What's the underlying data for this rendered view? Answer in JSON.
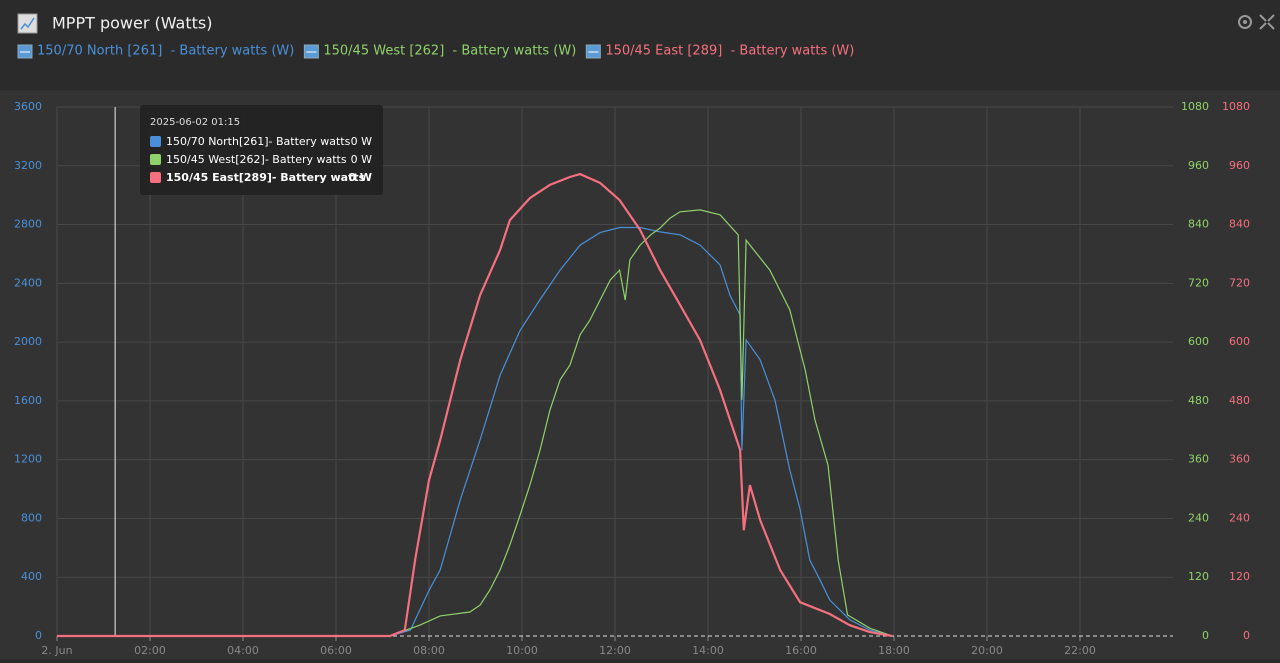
{
  "chart_data": {
    "type": "line",
    "title": "MPPT power (Watts)",
    "xlim": [
      0,
      24
    ],
    "xticks": [
      {
        "value": 0,
        "label": "2. Jun"
      },
      {
        "value": 2,
        "label": "02:00"
      },
      {
        "value": 4,
        "label": "04:00"
      },
      {
        "value": 6,
        "label": "06:00"
      },
      {
        "value": 8,
        "label": "08:00"
      },
      {
        "value": 10,
        "label": "10:00"
      },
      {
        "value": 12,
        "label": "12:00"
      },
      {
        "value": 14,
        "label": "14:00"
      },
      {
        "value": 16,
        "label": "16:00"
      },
      {
        "value": 18,
        "label": "18:00"
      },
      {
        "value": 20,
        "label": "20:00"
      },
      {
        "value": 22,
        "label": "22:00"
      }
    ],
    "ylim": [
      0,
      3600
    ],
    "yticks": [
      0,
      400,
      800,
      1200,
      1600,
      2000,
      2400,
      2800,
      3200,
      3600
    ],
    "y2lim": [
      0,
      1080
    ],
    "y2ticks": [
      0,
      120,
      240,
      360,
      480,
      600,
      720,
      840,
      960,
      1080
    ],
    "y3lim": [
      0,
      1080
    ],
    "y3ticks": [
      0,
      120,
      240,
      360,
      480,
      600,
      720,
      840,
      960,
      1080
    ],
    "grid": true,
    "series": [
      {
        "name": "150/70 North [261]  - Battery watts (W)",
        "color": "#4a90d9",
        "axis": "y",
        "x": [
          0,
          7.16,
          7.6,
          8.0,
          8.24,
          8.67,
          9.1,
          9.53,
          9.96,
          10.39,
          10.82,
          11.25,
          11.68,
          12.1,
          12.54,
          12.97,
          13.4,
          13.83,
          14.26,
          14.47,
          14.69,
          14.73,
          14.82,
          15.12,
          15.44,
          15.76,
          15.98,
          16.19,
          16.41,
          16.62,
          17.05,
          17.48,
          17.96
        ],
        "values": [
          0,
          0,
          40,
          310,
          450,
          925,
          1335,
          1775,
          2080,
          2290,
          2490,
          2660,
          2745,
          2780,
          2780,
          2750,
          2730,
          2660,
          2525,
          2320,
          2185,
          1265,
          2015,
          1880,
          1605,
          1130,
          860,
          517,
          380,
          245,
          110,
          40,
          0
        ]
      },
      {
        "name": "150/45 West [262]  - Battery watts (W)",
        "color": "#8fd16a",
        "axis": "y2",
        "x": [
          0,
          7.16,
          7.8,
          8.24,
          8.88,
          9.1,
          9.31,
          9.53,
          9.74,
          9.96,
          10.17,
          10.39,
          10.6,
          10.82,
          11.03,
          11.25,
          11.46,
          11.68,
          11.9,
          12.1,
          12.22,
          12.32,
          12.54,
          12.77,
          12.97,
          13.18,
          13.4,
          13.83,
          14.26,
          14.65,
          14.73,
          14.82,
          15.33,
          15.76,
          16.09,
          16.3,
          16.58,
          16.8,
          17.0,
          17.48,
          17.96
        ],
        "values": [
          0,
          0,
          22,
          41,
          49,
          63,
          94,
          135,
          186,
          247,
          308,
          380,
          461,
          523,
          553,
          615,
          645,
          686,
          727,
          747,
          686,
          768,
          798,
          819,
          833,
          853,
          866,
          870,
          860,
          819,
          482,
          808,
          747,
          666,
          543,
          441,
          349,
          155,
          43,
          16,
          0
        ]
      },
      {
        "name": "150/45 East [289]  - Battery watts (W)",
        "color": "#f4707e",
        "axis": "y3",
        "x": [
          0,
          7.16,
          7.48,
          7.7,
          8.0,
          8.24,
          8.67,
          9.1,
          9.53,
          9.74,
          10.17,
          10.6,
          11.03,
          11.25,
          11.68,
          12.1,
          12.54,
          12.97,
          13.4,
          13.83,
          14.26,
          14.69,
          14.77,
          14.9,
          15.12,
          15.55,
          15.98,
          16.62,
          17.05,
          17.48,
          17.96
        ],
        "values": [
          0,
          0,
          12,
          155,
          318,
          400,
          563,
          696,
          788,
          849,
          894,
          921,
          937,
          943,
          925,
          890,
          829,
          747,
          676,
          604,
          502,
          380,
          216,
          308,
          237,
          135,
          69,
          45,
          22,
          8,
          0
        ]
      }
    ],
    "tooltip": {
      "title": "2025-06-02 01:15",
      "cursor_x": 1.25,
      "rows": [
        {
          "label": "150/70 North[261]- Battery watts",
          "value_label": "0 W"
        },
        {
          "label": "150/45 West[262]- Battery watts",
          "value_label": "0 W"
        },
        {
          "label": "150/45 East[289]- Battery watts",
          "value_label": "0 W"
        }
      ]
    }
  }
}
